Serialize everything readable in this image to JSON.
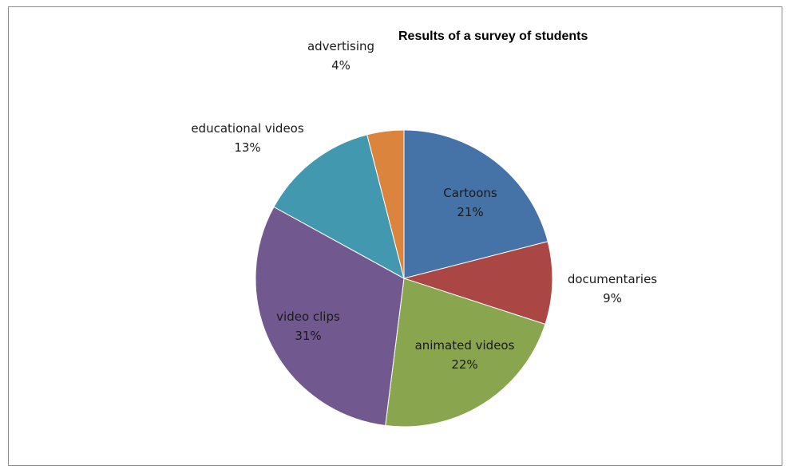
{
  "chart_data": {
    "type": "pie",
    "title": "Results of a survey of students",
    "slices": [
      {
        "label": "Cartoons",
        "value": 21,
        "value_label": "21%",
        "color": "#4572A7"
      },
      {
        "label": "documentaries",
        "value": 9,
        "value_label": "9%",
        "color": "#AA4643"
      },
      {
        "label": "animated videos",
        "value": 22,
        "value_label": "22%",
        "color": "#89A54E"
      },
      {
        "label": "video clips",
        "value": 31,
        "value_label": "31%",
        "color": "#71588F"
      },
      {
        "label": "educational videos",
        "value": 13,
        "value_label": "13%",
        "color": "#4198AF"
      },
      {
        "label": "advertising",
        "value": 4,
        "value_label": "4%",
        "color": "#DB843D"
      }
    ],
    "start_angle": "12 o'clock",
    "direction": "clockwise",
    "legend": "none"
  }
}
